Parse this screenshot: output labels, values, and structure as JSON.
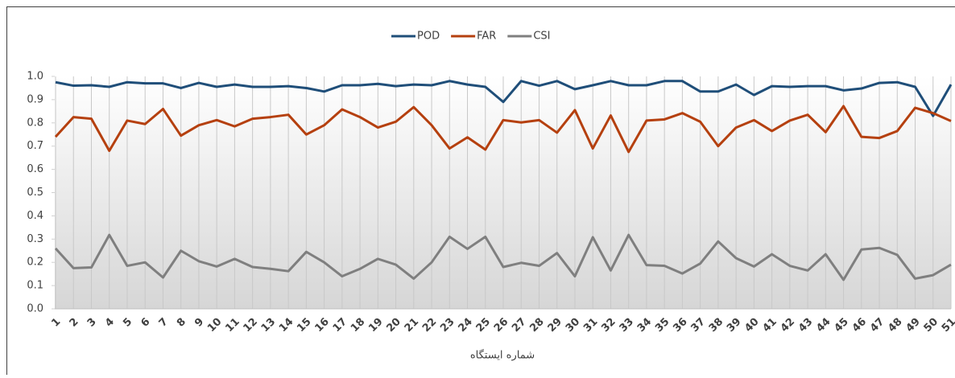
{
  "chart_data": {
    "type": "line",
    "x_label": "شماره ایستگاه",
    "categories": [
      "1",
      "2",
      "3",
      "4",
      "5",
      "6",
      "7",
      "8",
      "9",
      "10",
      "11",
      "12",
      "13",
      "14",
      "15",
      "16",
      "17",
      "18",
      "19",
      "20",
      "21",
      "22",
      "23",
      "24",
      "25",
      "26",
      "27",
      "28",
      "29",
      "30",
      "31",
      "32",
      "33",
      "34",
      "35",
      "36",
      "37",
      "38",
      "39",
      "40",
      "41",
      "42",
      "43",
      "44",
      "45",
      "46",
      "47",
      "48",
      "49",
      "50",
      "51"
    ],
    "series": [
      {
        "name": "POD",
        "color": "#1f4e79",
        "values": [
          0.975,
          0.96,
          0.962,
          0.955,
          0.975,
          0.97,
          0.97,
          0.95,
          0.972,
          0.955,
          0.965,
          0.955,
          0.955,
          0.958,
          0.95,
          0.935,
          0.962,
          0.962,
          0.968,
          0.958,
          0.965,
          0.962,
          0.98,
          0.965,
          0.955,
          0.89,
          0.98,
          0.96,
          0.98,
          0.945,
          0.962,
          0.98,
          0.962,
          0.962,
          0.98,
          0.98,
          0.935,
          0.935,
          0.965,
          0.92,
          0.958,
          0.955,
          0.958,
          0.958,
          0.94,
          0.948,
          0.972,
          0.975,
          0.955,
          0.83,
          0.965
        ]
      },
      {
        "name": "FAR",
        "color": "#b5400f",
        "values": [
          0.74,
          0.825,
          0.818,
          0.68,
          0.81,
          0.795,
          0.86,
          0.745,
          0.79,
          0.812,
          0.785,
          0.818,
          0.825,
          0.835,
          0.75,
          0.79,
          0.858,
          0.825,
          0.78,
          0.805,
          0.868,
          0.79,
          0.69,
          0.738,
          0.685,
          0.812,
          0.802,
          0.812,
          0.758,
          0.855,
          0.69,
          0.832,
          0.675,
          0.81,
          0.815,
          0.842,
          0.805,
          0.7,
          0.78,
          0.812,
          0.765,
          0.81,
          0.835,
          0.76,
          0.872,
          0.74,
          0.735,
          0.765,
          0.865,
          0.842,
          0.808
        ]
      },
      {
        "name": "CSI",
        "color": "#7f7f7f",
        "values": [
          0.26,
          0.175,
          0.178,
          0.318,
          0.185,
          0.2,
          0.135,
          0.25,
          0.205,
          0.182,
          0.215,
          0.18,
          0.172,
          0.162,
          0.245,
          0.2,
          0.14,
          0.172,
          0.215,
          0.19,
          0.13,
          0.2,
          0.31,
          0.258,
          0.31,
          0.18,
          0.198,
          0.185,
          0.24,
          0.14,
          0.308,
          0.165,
          0.318,
          0.188,
          0.185,
          0.152,
          0.195,
          0.29,
          0.218,
          0.182,
          0.235,
          0.185,
          0.165,
          0.235,
          0.125,
          0.255,
          0.262,
          0.232,
          0.13,
          0.145,
          0.19
        ]
      }
    ],
    "ylim": [
      0,
      1
    ],
    "yticks": [
      {
        "value": 0,
        "label": "0.0"
      },
      {
        "value": 0.1,
        "label": "0.1"
      },
      {
        "value": 0.2,
        "label": "0.2"
      },
      {
        "value": 0.3,
        "label": "0.3"
      },
      {
        "value": 0.4,
        "label": "0.4"
      },
      {
        "value": 0.5,
        "label": "0.5"
      },
      {
        "value": 0.6,
        "label": "0.6"
      },
      {
        "value": 0.7,
        "label": "0.7"
      },
      {
        "value": 0.8,
        "label": "0.8"
      },
      {
        "value": 0.9,
        "label": "0.9"
      },
      {
        "value": 1,
        "label": "1.0"
      }
    ],
    "grid": true,
    "legend": "top"
  }
}
